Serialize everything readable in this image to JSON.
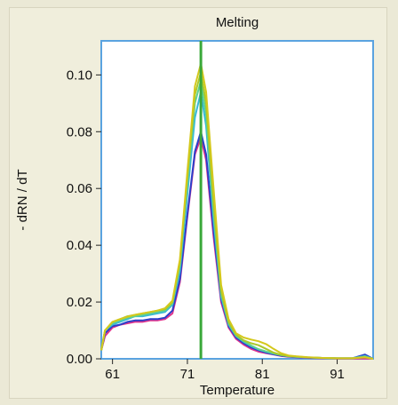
{
  "chart_data": {
    "type": "line",
    "title": "Melting",
    "xlabel": "Temperature",
    "ylabel": "- dRN / dT",
    "xlim": [
      59.5,
      95.8
    ],
    "ylim": [
      0.0,
      0.112
    ],
    "xticks": [
      61,
      71,
      81,
      91
    ],
    "xtick_labels": [
      "61",
      "71",
      "81",
      "91"
    ],
    "yticks": [
      0.0,
      0.02,
      0.04,
      0.06,
      0.08,
      0.1
    ],
    "ytick_labels": [
      "0.00",
      "0.02",
      "0.04",
      "0.06",
      "0.08",
      "0.10"
    ],
    "grid": false,
    "legend": "none",
    "vertical_marker": {
      "x": 72.8,
      "color": "#3aa83a"
    },
    "series": [
      {
        "color": "#e0338c",
        "x": [
          59.5,
          60,
          61,
          62,
          63,
          64,
          65,
          66,
          67,
          68,
          69,
          70,
          71,
          72,
          72.8,
          73.5,
          74.5,
          75.5,
          76.5,
          77.5,
          78.5,
          79.5,
          80.5,
          81.5,
          82.5,
          83.5,
          84.5,
          85.5,
          87,
          89,
          91,
          93,
          94.7,
          95.8
        ],
        "y": [
          0.003,
          0.008,
          0.011,
          0.012,
          0.0125,
          0.013,
          0.013,
          0.0135,
          0.0135,
          0.014,
          0.016,
          0.027,
          0.05,
          0.072,
          0.078,
          0.07,
          0.043,
          0.02,
          0.011,
          0.007,
          0.005,
          0.0035,
          0.0025,
          0.002,
          0.0015,
          0.001,
          0.0007,
          0.0005,
          0.0003,
          0.0002,
          0.0001,
          0.0001,
          0.0001,
          0.0
        ]
      },
      {
        "color": "#2a3fc9",
        "x": [
          59.5,
          60,
          61,
          62,
          63,
          64,
          65,
          66,
          67,
          68,
          69,
          70,
          71,
          72,
          72.8,
          73.5,
          74.5,
          75.5,
          76.5,
          77.5,
          78.5,
          79.5,
          80.5,
          81.5,
          82.5,
          83.5,
          84.5,
          85.5,
          87,
          89,
          91,
          93,
          94.7,
          95.8
        ],
        "y": [
          0.003,
          0.009,
          0.0115,
          0.012,
          0.013,
          0.0135,
          0.0135,
          0.014,
          0.014,
          0.0145,
          0.017,
          0.028,
          0.051,
          0.073,
          0.08,
          0.072,
          0.045,
          0.021,
          0.0115,
          0.0075,
          0.0055,
          0.004,
          0.003,
          0.0022,
          0.0016,
          0.0011,
          0.0008,
          0.0006,
          0.0004,
          0.0003,
          0.0002,
          0.0002,
          0.0015,
          0.0
        ]
      },
      {
        "color": "#39b8d6",
        "x": [
          59.5,
          60,
          61,
          62,
          63,
          64,
          65,
          66,
          67,
          68,
          69,
          70,
          71,
          72,
          72.8,
          73.5,
          74.5,
          75.5,
          76.5,
          77.5,
          78.5,
          79.5,
          80.5,
          81.5,
          82.5,
          83.5,
          84.5,
          85.5,
          87,
          89,
          91,
          93,
          94.7,
          95.8
        ],
        "y": [
          0.003,
          0.01,
          0.012,
          0.013,
          0.014,
          0.015,
          0.015,
          0.0155,
          0.016,
          0.0165,
          0.019,
          0.031,
          0.058,
          0.085,
          0.094,
          0.082,
          0.049,
          0.022,
          0.012,
          0.008,
          0.006,
          0.0045,
          0.0033,
          0.0025,
          0.0018,
          0.0013,
          0.0009,
          0.0007,
          0.0005,
          0.0003,
          0.0002,
          0.0002,
          0.001,
          0.0
        ]
      },
      {
        "color": "#5fd190",
        "x": [
          59.5,
          60,
          61,
          62,
          63,
          64,
          65,
          66,
          67,
          68,
          69,
          70,
          71,
          72,
          72.8,
          73.5,
          74.5,
          75.5,
          76.5,
          77.5,
          78.5,
          79.5,
          80.5,
          81.5,
          82.5,
          83.5,
          84.5,
          85.5,
          87,
          89,
          91,
          93,
          94.7,
          95.8
        ],
        "y": [
          0.003,
          0.01,
          0.0125,
          0.0135,
          0.0145,
          0.015,
          0.0155,
          0.016,
          0.0165,
          0.017,
          0.0195,
          0.033,
          0.062,
          0.09,
          0.098,
          0.086,
          0.052,
          0.023,
          0.0125,
          0.0082,
          0.0062,
          0.0047,
          0.0034,
          0.0026,
          0.0019,
          0.0013,
          0.0009,
          0.0007,
          0.0005,
          0.0003,
          0.0002,
          0.0002,
          0.0008,
          0.0
        ]
      },
      {
        "color": "#a9c82a",
        "x": [
          59.5,
          60,
          61,
          62,
          63,
          64,
          65,
          66,
          67,
          68,
          69,
          70,
          71,
          72,
          72.8,
          73.5,
          74.5,
          75.5,
          76.5,
          77.5,
          78.5,
          79.5,
          80.5,
          81.5,
          82.5,
          83.5,
          84.5,
          85.5,
          87,
          89,
          91,
          93,
          94.7,
          95.8
        ],
        "y": [
          0.003,
          0.01,
          0.013,
          0.014,
          0.015,
          0.0155,
          0.016,
          0.0165,
          0.017,
          0.0175,
          0.02,
          0.034,
          0.064,
          0.093,
          0.101,
          0.09,
          0.055,
          0.024,
          0.013,
          0.0085,
          0.0065,
          0.0055,
          0.0048,
          0.0035,
          0.0022,
          0.0014,
          0.001,
          0.0008,
          0.0005,
          0.0003,
          0.0002,
          0.0002,
          0.0006,
          0.0
        ]
      },
      {
        "color": "#d4c81c",
        "x": [
          59.5,
          60,
          61,
          62,
          63,
          64,
          65,
          66,
          67,
          68,
          69,
          70,
          71,
          72,
          72.8,
          73.5,
          74.5,
          75.5,
          76.5,
          77.5,
          78.5,
          79.5,
          80.5,
          81.5,
          82.5,
          83.5,
          84.5,
          85.5,
          87,
          89,
          91,
          93,
          94.7,
          95.8
        ],
        "y": [
          0.003,
          0.01,
          0.013,
          0.014,
          0.0148,
          0.0155,
          0.016,
          0.0165,
          0.017,
          0.0178,
          0.0205,
          0.035,
          0.066,
          0.096,
          0.104,
          0.094,
          0.06,
          0.026,
          0.014,
          0.009,
          0.0075,
          0.0068,
          0.0062,
          0.0052,
          0.0035,
          0.002,
          0.0012,
          0.0009,
          0.0006,
          0.0003,
          0.0002,
          0.0002,
          0.0005,
          0.0
        ]
      }
    ]
  }
}
